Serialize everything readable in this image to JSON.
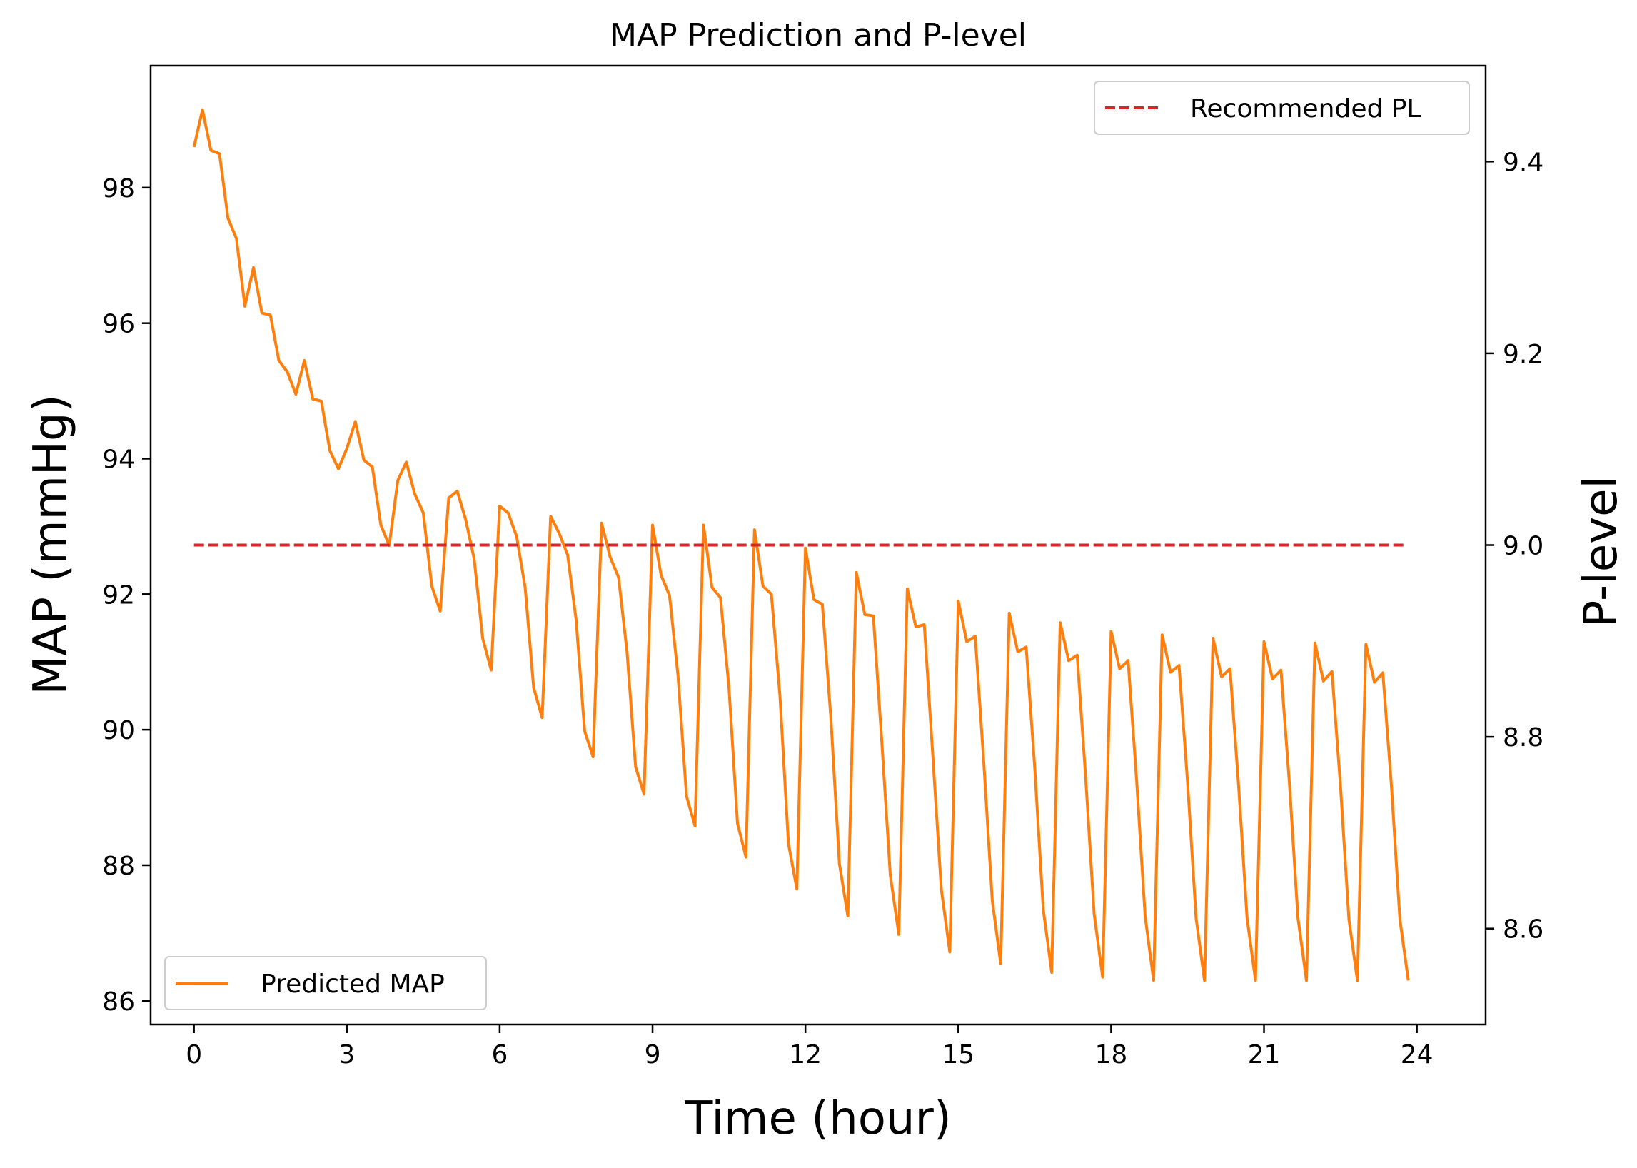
{
  "chart_data": {
    "type": "line",
    "title": "MAP Prediction and P-level",
    "xlabel": "Time (hour)",
    "ylabel_left": "MAP (mmHg)",
    "ylabel_right": "P-level",
    "xlim": [
      -0.85,
      25.35
    ],
    "ylim_left": [
      85.65,
      99.8
    ],
    "ylim_right": [
      8.5,
      9.5
    ],
    "x_ticks": [
      "0",
      "3",
      "6",
      "9",
      "12",
      "15",
      "18",
      "21",
      "24"
    ],
    "y_left_ticks": [
      "86",
      "88",
      "90",
      "92",
      "94",
      "96",
      "98"
    ],
    "y_right_ticks": [
      "8.6",
      "8.8",
      "9.0",
      "9.2",
      "9.4"
    ],
    "grid": false,
    "colors": {
      "map": "#ff7f0e",
      "pl": "#d62728"
    },
    "series": [
      {
        "name": "Predicted MAP",
        "axis": "left",
        "style": "solid",
        "x": [
          0,
          0.167,
          0.333,
          0.5,
          0.667,
          0.833,
          1.0,
          1.167,
          1.333,
          1.5,
          1.667,
          1.833,
          2.0,
          2.167,
          2.333,
          2.5,
          2.667,
          2.833,
          3.0,
          3.167,
          3.333,
          3.5,
          3.667,
          3.833,
          4.0,
          4.167,
          4.333,
          4.5,
          4.667,
          4.833,
          5.0,
          5.167,
          5.333,
          5.5,
          5.667,
          5.833,
          6.0,
          6.167,
          6.333,
          6.5,
          6.667,
          6.833,
          7.0,
          7.167,
          7.333,
          7.5,
          7.667,
          7.833,
          8.0,
          8.167,
          8.333,
          8.5,
          8.667,
          8.833,
          9.0,
          9.167,
          9.333,
          9.5,
          9.667,
          9.833,
          10.0,
          10.167,
          10.333,
          10.5,
          10.667,
          10.833,
          11.0,
          11.167,
          11.333,
          11.5,
          11.667,
          11.833,
          12.0,
          12.167,
          12.333,
          12.5,
          12.667,
          12.833,
          13.0,
          13.167,
          13.333,
          13.5,
          13.667,
          13.833,
          14.0,
          14.167,
          14.333,
          14.5,
          14.667,
          14.833,
          15.0,
          15.167,
          15.333,
          15.5,
          15.667,
          15.833,
          16.0,
          16.167,
          16.333,
          16.5,
          16.667,
          16.833,
          17.0,
          17.167,
          17.333,
          17.5,
          17.667,
          17.833,
          18.0,
          18.167,
          18.333,
          18.5,
          18.667,
          18.833,
          19.0,
          19.167,
          19.333,
          19.5,
          19.667,
          19.833,
          20.0,
          20.167,
          20.333,
          20.5,
          20.667,
          20.833,
          21.0,
          21.167,
          21.333,
          21.5,
          21.667,
          21.833,
          22.0,
          22.167,
          22.333,
          22.5,
          22.667,
          22.833,
          23.0,
          23.167,
          23.333,
          23.5,
          23.667,
          23.833
        ],
        "y": [
          98.6,
          99.15,
          98.55,
          98.5,
          97.55,
          97.25,
          96.25,
          96.82,
          96.15,
          96.12,
          95.45,
          95.28,
          94.95,
          95.45,
          94.88,
          94.85,
          94.12,
          93.85,
          94.15,
          94.55,
          93.98,
          93.88,
          93.02,
          92.72,
          93.68,
          93.95,
          93.48,
          93.2,
          92.12,
          91.75,
          93.42,
          93.52,
          93.1,
          92.52,
          91.35,
          90.88,
          93.3,
          93.2,
          92.85,
          92.1,
          90.62,
          90.18,
          93.15,
          92.9,
          92.58,
          91.62,
          89.98,
          89.6,
          93.05,
          92.55,
          92.25,
          91.15,
          89.45,
          89.05,
          93.02,
          92.28,
          91.98,
          90.8,
          89.02,
          88.58,
          93.02,
          92.1,
          91.95,
          90.62,
          88.62,
          88.12,
          92.95,
          92.12,
          92.0,
          90.5,
          88.32,
          87.65,
          92.68,
          91.92,
          91.85,
          90.18,
          88.02,
          87.25,
          92.32,
          91.7,
          91.68,
          89.82,
          87.85,
          86.98,
          92.08,
          91.52,
          91.55,
          89.62,
          87.65,
          86.72,
          91.9,
          91.3,
          91.38,
          89.52,
          87.48,
          86.55,
          91.72,
          91.15,
          91.22,
          89.45,
          87.35,
          86.42,
          91.58,
          91.02,
          91.1,
          89.3,
          87.28,
          86.35,
          91.45,
          90.9,
          91.02,
          89.25,
          87.25,
          86.3,
          91.4,
          90.85,
          90.95,
          89.22,
          87.22,
          86.3,
          91.35,
          90.78,
          90.9,
          89.2,
          87.22,
          86.3,
          91.3,
          90.75,
          90.88,
          89.2,
          87.22,
          86.3,
          91.28,
          90.72,
          90.86,
          89.18,
          87.2,
          86.3,
          91.26,
          90.7,
          90.84,
          89.18,
          87.2,
          86.3
        ]
      },
      {
        "name": "Recommended PL",
        "axis": "right",
        "style": "dashed",
        "x": [
          0,
          23.8
        ],
        "y": [
          9.0,
          9.0
        ]
      }
    ],
    "legends": [
      {
        "series": "Recommended PL",
        "placement": "upper right"
      },
      {
        "series": "Predicted MAP",
        "placement": "lower left"
      }
    ]
  }
}
